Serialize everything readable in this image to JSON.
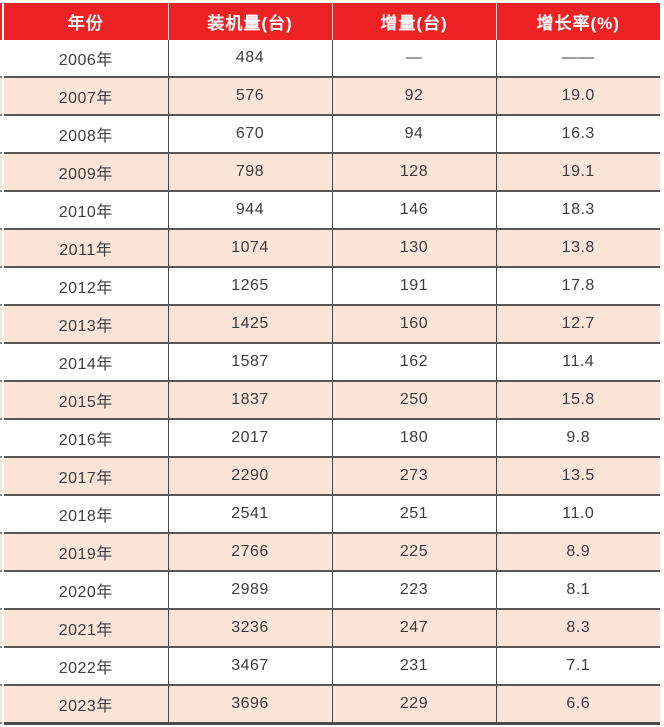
{
  "colors": {
    "header_bg": "#ED2224",
    "header_text": "#FFFFFF",
    "stripe_row_bg": "#FBE5D8",
    "plain_row_bg": "#FFFFFF",
    "row_border": "#5A5655",
    "column_border": "#4D4A49",
    "cell_text": "#3D3D3D"
  },
  "chart_data": {
    "type": "table",
    "title": "",
    "columns": [
      "年份",
      "装机量(台)",
      "增量(台)",
      "增长率(%)"
    ],
    "rows": [
      [
        "2006年",
        "484",
        "—",
        "——"
      ],
      [
        "2007年",
        "576",
        "92",
        "19.0"
      ],
      [
        "2008年",
        "670",
        "94",
        "16.3"
      ],
      [
        "2009年",
        "798",
        "128",
        "19.1"
      ],
      [
        "2010年",
        "944",
        "146",
        "18.3"
      ],
      [
        "2011年",
        "1074",
        "130",
        "13.8"
      ],
      [
        "2012年",
        "1265",
        "191",
        "17.8"
      ],
      [
        "2013年",
        "1425",
        "160",
        "12.7"
      ],
      [
        "2014年",
        "1587",
        "162",
        "11.4"
      ],
      [
        "2015年",
        "1837",
        "250",
        "15.8"
      ],
      [
        "2016年",
        "2017",
        "180",
        "9.8"
      ],
      [
        "2017年",
        "2290",
        "273",
        "13.5"
      ],
      [
        "2018年",
        "2541",
        "251",
        "11.0"
      ],
      [
        "2019年",
        "2766",
        "225",
        "8.9"
      ],
      [
        "2020年",
        "2989",
        "223",
        "8.1"
      ],
      [
        "2021年",
        "3236",
        "247",
        "8.3"
      ],
      [
        "2022年",
        "3467",
        "231",
        "7.1"
      ],
      [
        "2023年",
        "3696",
        "229",
        "6.6"
      ]
    ]
  }
}
